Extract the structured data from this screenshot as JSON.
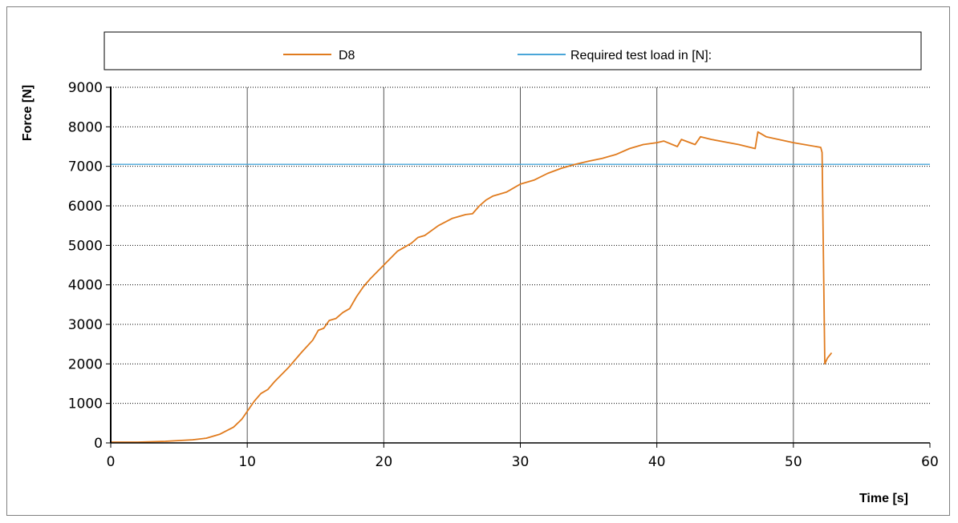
{
  "chart_data": {
    "type": "line",
    "xlabel": "Time [s]",
    "ylabel": "Force [N]",
    "xlim": [
      0,
      60
    ],
    "ylim": [
      0,
      9000
    ],
    "xticks": [
      0,
      10,
      20,
      30,
      40,
      50,
      60
    ],
    "yticks": [
      0,
      1000,
      2000,
      3000,
      4000,
      5000,
      6000,
      7000,
      8000,
      9000
    ],
    "grid": {
      "x_major": "solid",
      "y_major": "dotted"
    },
    "legend_placement": "top",
    "series": [
      {
        "name": "D8",
        "color": "#e07b1e",
        "points": [
          [
            0,
            20
          ],
          [
            2,
            20
          ],
          [
            4,
            40
          ],
          [
            6,
            80
          ],
          [
            7,
            120
          ],
          [
            8,
            220
          ],
          [
            9,
            400
          ],
          [
            9.6,
            600
          ],
          [
            10.1,
            850
          ],
          [
            10.5,
            1050
          ],
          [
            11,
            1250
          ],
          [
            11.5,
            1350
          ],
          [
            12,
            1550
          ],
          [
            13,
            1900
          ],
          [
            14,
            2300
          ],
          [
            14.8,
            2600
          ],
          [
            15.2,
            2850
          ],
          [
            15.6,
            2900
          ],
          [
            16,
            3100
          ],
          [
            16.5,
            3150
          ],
          [
            17,
            3300
          ],
          [
            17.5,
            3400
          ],
          [
            18,
            3700
          ],
          [
            18.5,
            3950
          ],
          [
            19,
            4150
          ],
          [
            20,
            4500
          ],
          [
            21,
            4850
          ],
          [
            22,
            5050
          ],
          [
            22.5,
            5200
          ],
          [
            23,
            5250
          ],
          [
            24,
            5500
          ],
          [
            25,
            5680
          ],
          [
            26,
            5780
          ],
          [
            26.5,
            5800
          ],
          [
            27,
            6000
          ],
          [
            27.5,
            6150
          ],
          [
            28,
            6250
          ],
          [
            29,
            6350
          ],
          [
            30,
            6550
          ],
          [
            31,
            6650
          ],
          [
            32,
            6820
          ],
          [
            33,
            6950
          ],
          [
            34,
            7050
          ],
          [
            35,
            7130
          ],
          [
            36,
            7200
          ],
          [
            37,
            7300
          ],
          [
            38,
            7450
          ],
          [
            39,
            7550
          ],
          [
            40,
            7600
          ],
          [
            40.5,
            7640
          ],
          [
            41.5,
            7500
          ],
          [
            41.8,
            7680
          ],
          [
            42.8,
            7550
          ],
          [
            43.2,
            7750
          ],
          [
            44,
            7680
          ],
          [
            46,
            7550
          ],
          [
            47.2,
            7450
          ],
          [
            47.4,
            7870
          ],
          [
            48,
            7750
          ],
          [
            50,
            7600
          ],
          [
            52,
            7480
          ],
          [
            52.1,
            7350
          ],
          [
            52.3,
            2000
          ],
          [
            52.5,
            2150
          ],
          [
            52.8,
            2280
          ]
        ]
      },
      {
        "name": "Required test load in [N]:",
        "color": "#4aa6d8",
        "points": [
          [
            0,
            7050
          ],
          [
            60,
            7050
          ]
        ]
      }
    ]
  }
}
